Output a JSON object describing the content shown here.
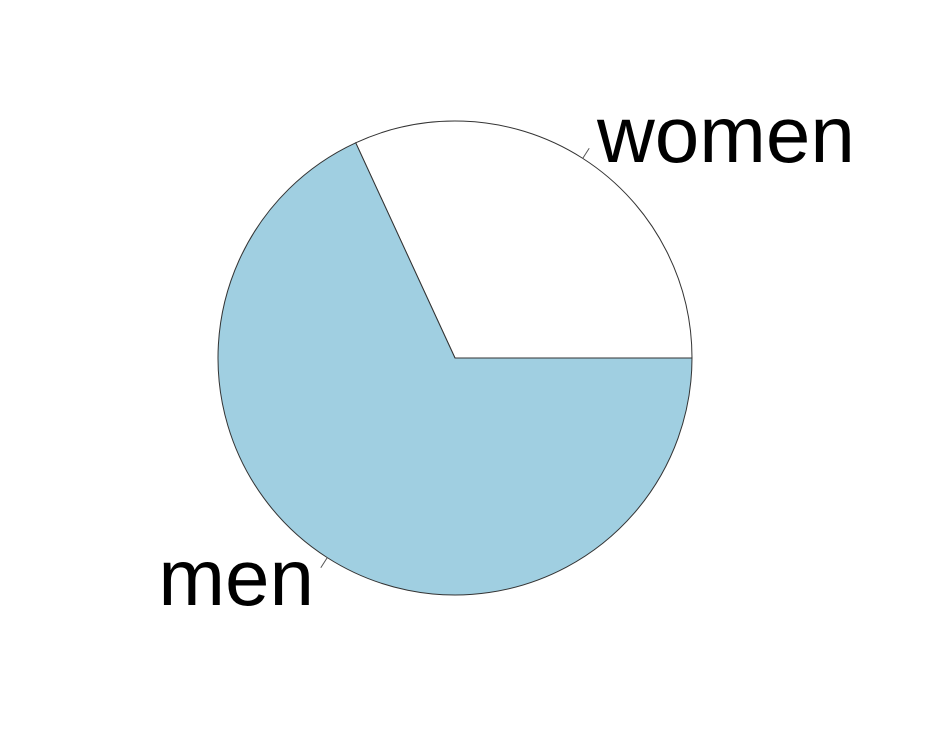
{
  "chart_data": {
    "type": "pie",
    "title": "",
    "start_angle_deg": 0,
    "direction": "counterclockwise",
    "slices": [
      {
        "label": "women",
        "value": 0.3188,
        "color": "#ffffff"
      },
      {
        "label": "men",
        "value": 0.6812,
        "color": "#a0cfe1"
      }
    ],
    "outline_color": "#333333",
    "legend": "none"
  }
}
